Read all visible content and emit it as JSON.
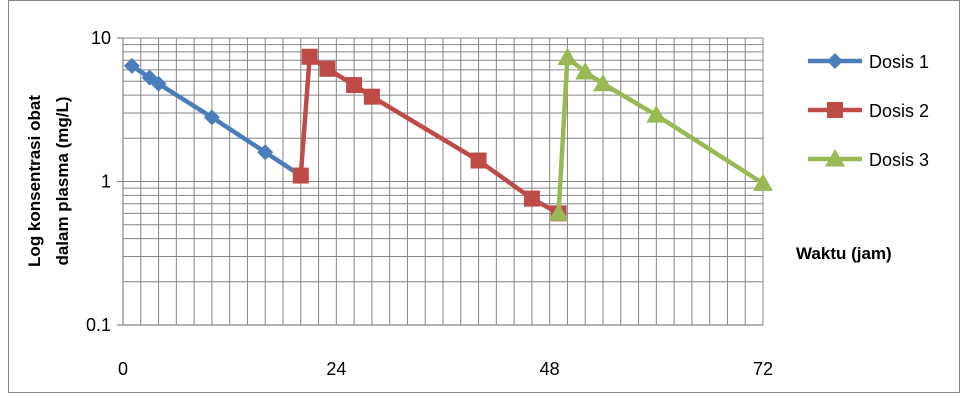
{
  "chart_data": {
    "type": "line",
    "title": "",
    "xlabel": "Waktu (jam)",
    "ylabel_lines": [
      "Log konsentrasi obat",
      "dalam plasma (mg/L)"
    ],
    "y_scale": "log",
    "ylim": [
      0.1,
      10
    ],
    "xlim": [
      0,
      72
    ],
    "x_ticks": [
      0,
      24,
      48,
      72
    ],
    "x_tick_labels": [
      "0",
      "24",
      "48",
      "72"
    ],
    "y_ticks": [
      0.1,
      1,
      10
    ],
    "y_tick_labels": [
      "0.1",
      "1",
      "10"
    ],
    "grid": true,
    "legend_position": "right",
    "series": [
      {
        "name": "Dosis 1",
        "color": "#4a7ebb",
        "marker": "diamond",
        "x": [
          1,
          3,
          4,
          10,
          16,
          20
        ],
        "y": [
          6.4,
          5.3,
          4.8,
          2.8,
          1.6,
          1.1
        ]
      },
      {
        "name": "Dosis 2",
        "color": "#be4b48",
        "marker": "square",
        "x": [
          20,
          21,
          23,
          26,
          28,
          40,
          46,
          49
        ],
        "y": [
          1.1,
          7.4,
          6.1,
          4.7,
          3.9,
          1.4,
          0.76,
          0.6
        ]
      },
      {
        "name": "Dosis 3",
        "color": "#98b954",
        "marker": "triangle",
        "x": [
          49,
          50,
          52,
          54,
          60,
          72
        ],
        "y": [
          0.6,
          7.3,
          5.8,
          4.8,
          2.9,
          0.97
        ]
      }
    ]
  }
}
